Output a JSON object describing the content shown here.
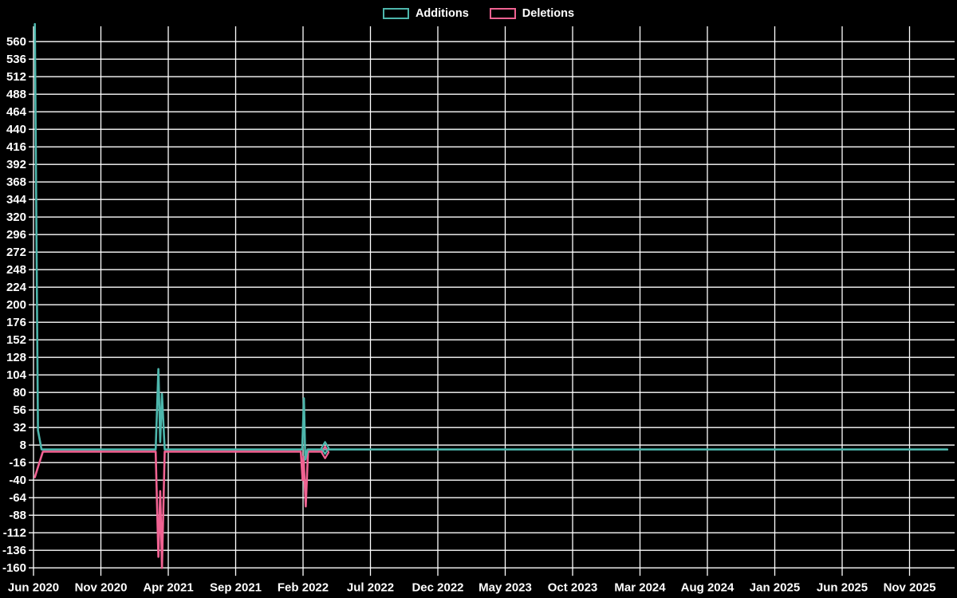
{
  "page": {
    "background_color": "#000000",
    "text_color": "#ffffff"
  },
  "chart_data": {
    "type": "line",
    "title": "",
    "legend": {
      "position": "top-center",
      "entries": [
        "Additions",
        "Deletions"
      ]
    },
    "grid": {
      "shown": true,
      "color": "#ffffff"
    },
    "x_axis": {
      "label": "",
      "tick_labels": [
        "Jun 2020",
        "Nov 2020",
        "Apr 2021",
        "Sep 2021",
        "Feb 2022",
        "Jul 2022",
        "Dec 2022",
        "May 2023",
        "Oct 2023",
        "Mar 2024",
        "Aug 2024",
        "Jan 2025",
        "Jun 2025",
        "Nov 2025"
      ],
      "months_between_ticks": 5
    },
    "y_axis": {
      "label": "",
      "min": -160,
      "max": 560,
      "step": 24,
      "tick_labels": [
        "560",
        "536",
        "512",
        "488",
        "464",
        "440",
        "416",
        "392",
        "368",
        "344",
        "320",
        "296",
        "272",
        "248",
        "224",
        "200",
        "176",
        "152",
        "128",
        "104",
        "80",
        "56",
        "32",
        "8",
        "-16",
        "-40",
        "-64",
        "-88",
        "-112",
        "-136",
        "-160"
      ]
    },
    "series": [
      {
        "name": "Additions",
        "color": "#4db6ac",
        "points": [
          [
            "2020-06-04",
            584
          ],
          [
            "2020-06-11",
            28
          ],
          [
            "2020-06-19",
            2
          ],
          [
            "2021-03-03",
            2
          ],
          [
            "2021-03-09",
            112
          ],
          [
            "2021-03-13",
            12
          ],
          [
            "2021-03-17",
            78
          ],
          [
            "2021-03-23",
            2
          ],
          [
            "2022-01-29",
            2
          ],
          [
            "2022-02-03",
            72
          ],
          [
            "2022-02-06",
            -12
          ],
          [
            "2022-02-11",
            2
          ],
          [
            "2026-01-25",
            2
          ]
        ]
      },
      {
        "name": "Deletions",
        "color": "#f06292",
        "points": [
          [
            "2020-06-04",
            -36
          ],
          [
            "2020-06-13",
            -18
          ],
          [
            "2020-06-22",
            -1
          ],
          [
            "2021-03-03",
            -1
          ],
          [
            "2021-03-09",
            -145
          ],
          [
            "2021-03-13",
            -55
          ],
          [
            "2021-03-17",
            -160
          ],
          [
            "2021-03-23",
            -1
          ],
          [
            "2022-01-26",
            -1
          ],
          [
            "2022-01-30",
            -40
          ],
          [
            "2022-02-02",
            -8
          ],
          [
            "2022-02-07",
            -76
          ],
          [
            "2022-02-12",
            -1
          ],
          [
            "2022-03-14",
            -1
          ]
        ]
      }
    ],
    "isolated_points": [
      {
        "series": "Additions",
        "date": "2022-03-20",
        "value": 4,
        "marker": "diamond"
      },
      {
        "series": "Deletions",
        "date": "2022-03-20",
        "value": -2,
        "marker": "diamond"
      }
    ]
  }
}
